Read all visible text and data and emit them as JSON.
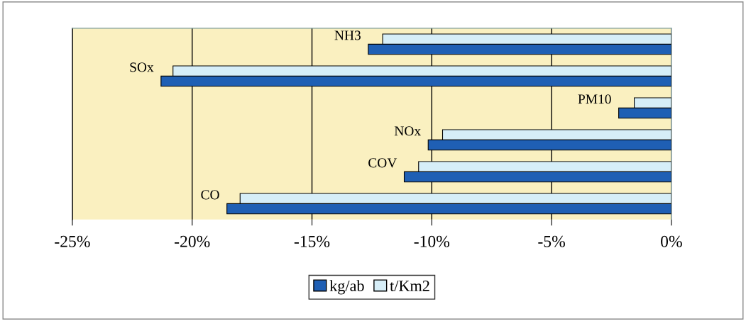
{
  "chart_data": {
    "type": "bar",
    "orientation": "horizontal",
    "categories": [
      "NH3",
      "SOx",
      "PM10",
      "NOx",
      "COV",
      "CO"
    ],
    "series": [
      {
        "name": "kg/ab",
        "color": "#1f5fb4",
        "values": [
          -12.65,
          -21.3,
          -2.2,
          -10.15,
          -11.15,
          -18.55
        ]
      },
      {
        "name": "t/Km2",
        "color": "#d6eef8",
        "values": [
          -12.05,
          -20.8,
          -1.55,
          -9.55,
          -10.55,
          -18.0
        ]
      }
    ],
    "xlim": [
      -25,
      0
    ],
    "xticks": [
      {
        "value": -25,
        "label": "-25%"
      },
      {
        "value": -20,
        "label": "-20%"
      },
      {
        "value": -15,
        "label": "-15%"
      },
      {
        "value": -10,
        "label": "-10%"
      },
      {
        "value": -5,
        "label": "-5%"
      },
      {
        "value": 0,
        "label": "0%"
      }
    ],
    "grid": "x",
    "legend": "bottom",
    "tick_labels": "x"
  }
}
